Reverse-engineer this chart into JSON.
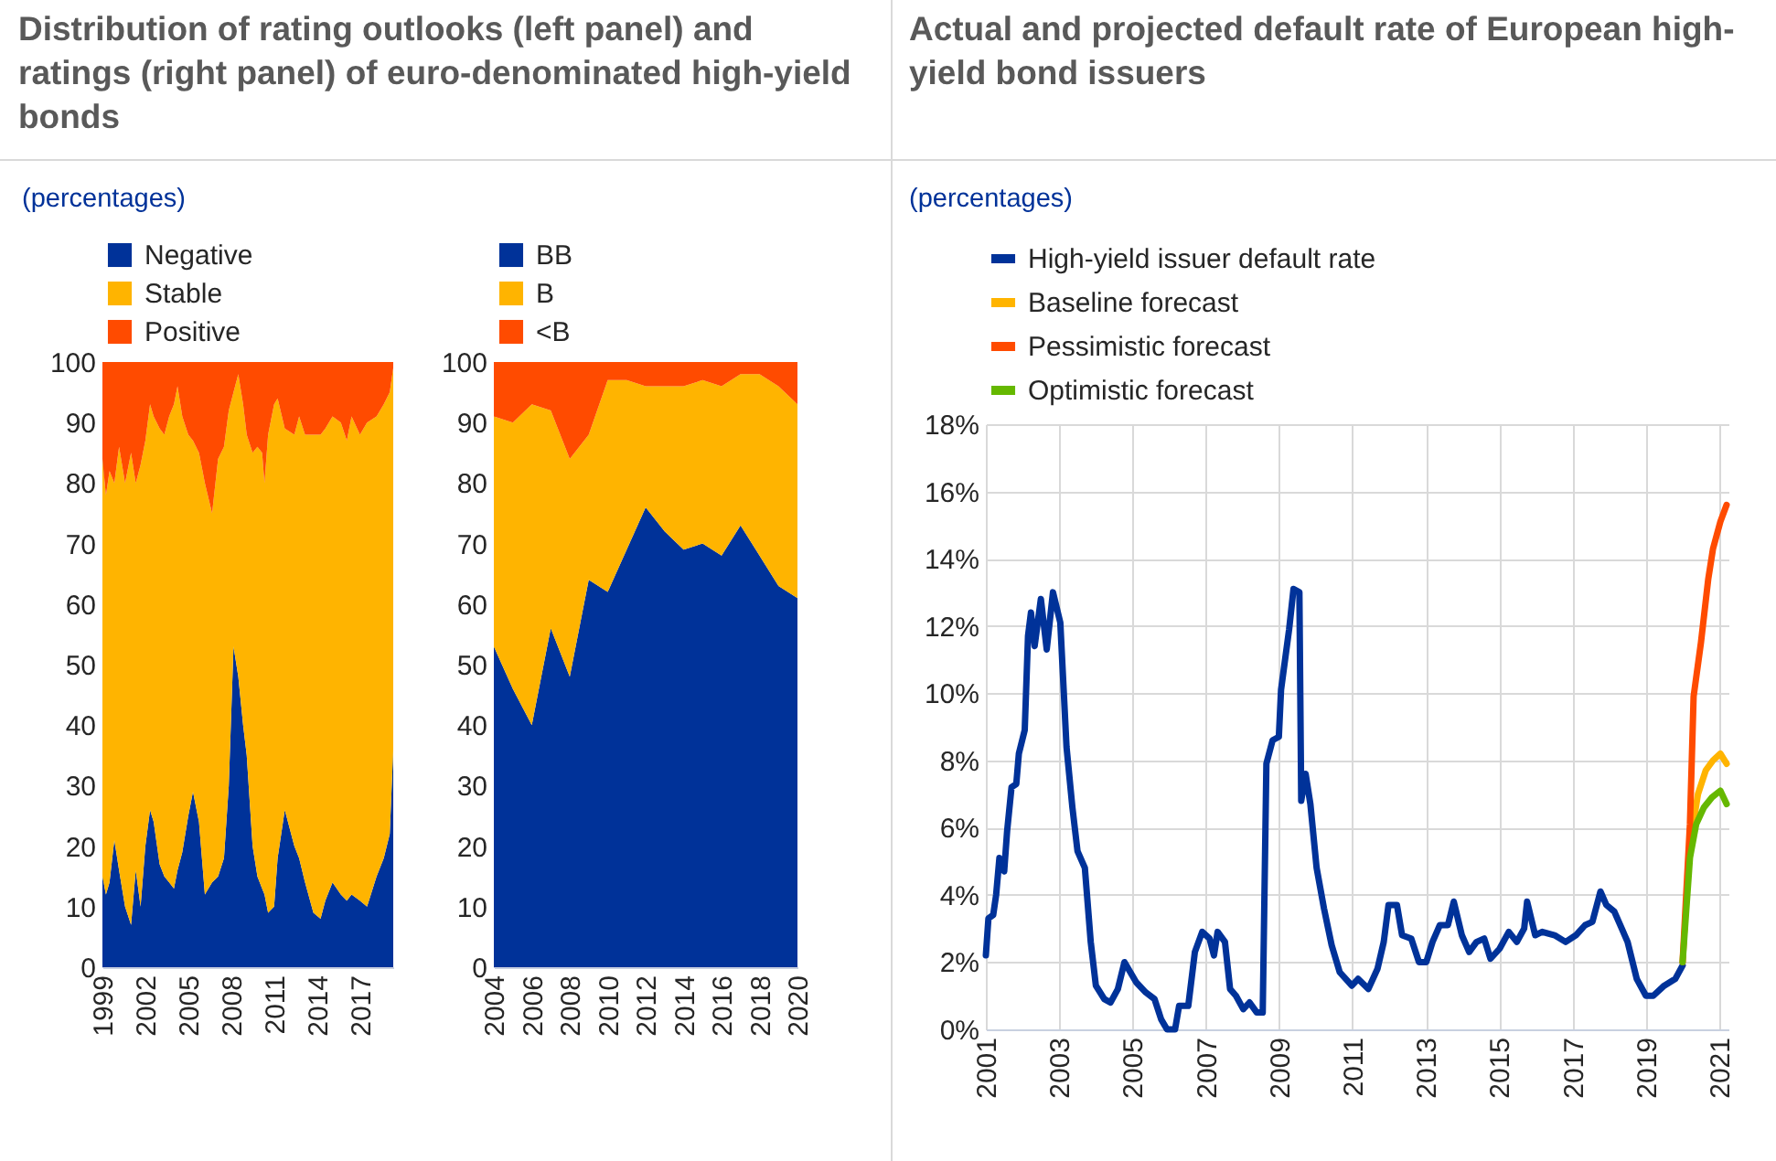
{
  "chart_data": [
    {
      "type": "area",
      "title": "Distribution of rating outlooks (left panel) and ratings (right panel) of euro-denominated high-yield bonds",
      "subtitle": "(percentages)",
      "stacked": true,
      "legend": "top left",
      "x": [
        "1999-01",
        "1999-04",
        "1999-07",
        "1999-11",
        "2000-03",
        "2000-08",
        "2001-01",
        "2001-05",
        "2001-09",
        "2002-01",
        "2002-05",
        "2002-08",
        "2003-01",
        "2003-05",
        "2003-09",
        "2004-01",
        "2004-04",
        "2004-08",
        "2005-01",
        "2005-05",
        "2005-10",
        "2006-03",
        "2006-09",
        "2007-02",
        "2007-07",
        "2007-11",
        "2008-03",
        "2008-07",
        "2008-11",
        "2009-02",
        "2009-07",
        "2009-11",
        "2010-03",
        "2010-05",
        "2010-08",
        "2011-01",
        "2011-04",
        "2011-10",
        "2012-06",
        "2012-10",
        "2013-03",
        "2013-10",
        "2014-04",
        "2014-08",
        "2015-02",
        "2015-09",
        "2016-02",
        "2016-06",
        "2017-01",
        "2017-07",
        "2018-03",
        "2018-09",
        "2019-02",
        "2019-05"
      ],
      "xlim": [
        "1999-01",
        "2019-05"
      ],
      "xticks": [
        "1999",
        "2002",
        "2005",
        "2008",
        "2011",
        "2014",
        "2017"
      ],
      "ylim": [
        0,
        100
      ],
      "yticks": [
        0,
        10,
        20,
        30,
        40,
        50,
        60,
        70,
        80,
        90,
        100
      ],
      "series": [
        {
          "name": "Negative",
          "color": "#003299",
          "values": [
            15,
            12,
            14,
            21,
            16,
            10,
            7,
            16,
            10,
            20,
            26,
            24,
            17,
            15,
            14,
            13,
            16,
            19,
            25,
            29,
            24,
            12,
            14,
            15,
            18,
            30,
            53,
            48,
            40,
            35,
            20,
            15,
            13,
            12,
            9,
            10,
            18,
            26,
            20,
            18,
            14,
            9,
            8,
            11,
            14,
            12,
            11,
            12,
            11,
            10,
            15,
            18,
            22,
            36
          ]
        },
        {
          "name": "Stable",
          "color": "#ffb400",
          "values": [
            69,
            66,
            68,
            59,
            70,
            70,
            78,
            64,
            73,
            67,
            67,
            67,
            72,
            73,
            77,
            80,
            80,
            72,
            63,
            58,
            61,
            68,
            61,
            69,
            68,
            62,
            42,
            50,
            53,
            53,
            65,
            71,
            72,
            68,
            79,
            83,
            76,
            63,
            68,
            73,
            74,
            79,
            80,
            78,
            77,
            78,
            76,
            79,
            77,
            80,
            76,
            75,
            73,
            63
          ]
        },
        {
          "name": "Positive",
          "color": "#ff4b00",
          "values": [
            16,
            22,
            18,
            20,
            14,
            20,
            15,
            20,
            17,
            13,
            7,
            9,
            11,
            12,
            9,
            7,
            4,
            9,
            12,
            13,
            15,
            20,
            25,
            16,
            14,
            8,
            5,
            2,
            7,
            12,
            15,
            14,
            15,
            20,
            12,
            7,
            6,
            11,
            12,
            9,
            12,
            12,
            12,
            11,
            9,
            10,
            13,
            9,
            12,
            10,
            9,
            7,
            5,
            1
          ]
        }
      ]
    },
    {
      "type": "area",
      "stacked": true,
      "legend": "top left",
      "x": [
        2004,
        2005,
        2006,
        2007,
        2008,
        2009,
        2010,
        2011,
        2012,
        2013,
        2014,
        2015,
        2016,
        2017,
        2018,
        2019,
        2020
      ],
      "xlim": [
        2004,
        2020
      ],
      "xticks": [
        2004,
        2006,
        2008,
        2010,
        2012,
        2014,
        2016,
        2018,
        2020
      ],
      "ylim": [
        0,
        100
      ],
      "yticks": [
        0,
        10,
        20,
        30,
        40,
        50,
        60,
        70,
        80,
        90,
        100
      ],
      "series": [
        {
          "name": "BB",
          "color": "#003299",
          "values": [
            53,
            46,
            40,
            56,
            48,
            64,
            62,
            69,
            76,
            72,
            69,
            70,
            68,
            73,
            68,
            63,
            61
          ]
        },
        {
          "name": "B",
          "color": "#ffb400",
          "values": [
            38,
            44,
            53,
            36,
            36,
            24,
            35,
            28,
            20,
            24,
            27,
            27,
            28,
            25,
            30,
            33,
            32
          ]
        },
        {
          "name": "<B",
          "color": "#ff4b00",
          "values": [
            9,
            10,
            7,
            8,
            16,
            12,
            3,
            3,
            4,
            4,
            4,
            3,
            4,
            2,
            2,
            4,
            7
          ]
        }
      ]
    },
    {
      "type": "line",
      "title": "Actual and projected default rate of European high-yield bond issuers",
      "subtitle": "(percentages)",
      "legend": "top left",
      "grid": true,
      "xlim": [
        2001,
        2021.25
      ],
      "xticks": [
        2001,
        2003,
        2005,
        2007,
        2009,
        2011,
        2013,
        2015,
        2017,
        2019,
        2021
      ],
      "ylim": [
        0,
        18
      ],
      "yticks": [
        {
          "value": 0,
          "label": "0%"
        },
        {
          "value": 2,
          "label": "2%"
        },
        {
          "value": 4,
          "label": "4%"
        },
        {
          "value": 6,
          "label": "6%"
        },
        {
          "value": 8,
          "label": "8%"
        },
        {
          "value": 10,
          "label": "10%"
        },
        {
          "value": 12,
          "label": "12%"
        },
        {
          "value": 14,
          "label": "14%"
        },
        {
          "value": 16,
          "label": "16%"
        },
        {
          "value": 18,
          "label": "18%"
        }
      ],
      "series": [
        {
          "name": "High-yield issuer default rate",
          "color": "#003299",
          "x": [
            2001.0,
            2001.07,
            2001.2,
            2001.28,
            2001.37,
            2001.5,
            2001.58,
            2001.7,
            2001.83,
            2001.9,
            2002.06,
            2002.15,
            2002.23,
            2002.33,
            2002.5,
            2002.66,
            2002.83,
            2003.03,
            2003.2,
            2003.36,
            2003.5,
            2003.7,
            2003.86,
            2004.0,
            2004.23,
            2004.4,
            2004.6,
            2004.78,
            2004.94,
            2005.1,
            2005.36,
            2005.6,
            2005.78,
            2005.94,
            2006.16,
            2006.27,
            2006.52,
            2006.7,
            2006.9,
            2007.1,
            2007.22,
            2007.32,
            2007.52,
            2007.66,
            2007.82,
            2008.02,
            2008.19,
            2008.39,
            2008.55,
            2008.65,
            2008.82,
            2008.99,
            2009.05,
            2009.27,
            2009.39,
            2009.55,
            2009.6,
            2009.72,
            2009.85,
            2010.02,
            2010.22,
            2010.43,
            2010.65,
            2010.98,
            2011.15,
            2011.43,
            2011.68,
            2011.85,
            2011.98,
            2012.21,
            2012.35,
            2012.6,
            2012.81,
            2013.01,
            2013.18,
            2013.38,
            2013.6,
            2013.76,
            2013.98,
            2014.18,
            2014.38,
            2014.59,
            2014.76,
            2015.01,
            2015.26,
            2015.48,
            2015.68,
            2015.76,
            2015.98,
            2016.17,
            2016.51,
            2016.81,
            2017.09,
            2017.34,
            2017.54,
            2017.76,
            2017.92,
            2018.14,
            2018.34,
            2018.5,
            2018.75,
            2019.0,
            2019.2,
            2019.5,
            2019.8,
            2020.0
          ],
          "values": [
            2.2,
            3.3,
            3.4,
            4.0,
            5.1,
            4.7,
            5.9,
            7.2,
            7.3,
            8.2,
            8.9,
            11.7,
            12.4,
            11.4,
            12.8,
            11.3,
            13.0,
            12.1,
            8.4,
            6.6,
            5.3,
            4.8,
            2.6,
            1.3,
            0.9,
            0.8,
            1.2,
            2.0,
            1.7,
            1.4,
            1.1,
            0.9,
            0.3,
            0.0,
            0.0,
            0.7,
            0.7,
            2.3,
            2.9,
            2.7,
            2.2,
            2.9,
            2.6,
            1.2,
            1.0,
            0.6,
            0.8,
            0.5,
            0.5,
            7.9,
            8.6,
            8.7,
            10.1,
            11.9,
            13.1,
            13.0,
            6.8,
            7.6,
            6.7,
            4.8,
            3.6,
            2.5,
            1.7,
            1.3,
            1.5,
            1.2,
            1.8,
            2.6,
            3.7,
            3.7,
            2.8,
            2.7,
            2.0,
            2.0,
            2.6,
            3.1,
            3.1,
            3.8,
            2.8,
            2.3,
            2.6,
            2.7,
            2.1,
            2.4,
            2.9,
            2.6,
            3.0,
            3.8,
            2.8,
            2.9,
            2.8,
            2.6,
            2.8,
            3.1,
            3.2,
            4.1,
            3.7,
            3.5,
            3.0,
            2.6,
            1.5,
            1.0,
            1.0,
            1.3,
            1.5,
            1.9
          ]
        },
        {
          "name": "Baseline forecast",
          "color": "#ffb400",
          "x": [
            2020.2,
            2020.42,
            2020.63,
            2020.83,
            2021.03,
            2021.2
          ],
          "values": [
            5.5,
            7.0,
            7.7,
            8.0,
            8.2,
            7.9
          ]
        },
        {
          "name": "Pessimistic forecast",
          "color": "#ff4b00",
          "x": [
            2020.0,
            2020.2,
            2020.3,
            2020.5,
            2020.7,
            2020.83,
            2021.03,
            2021.2
          ],
          "values": [
            2.0,
            6.1,
            9.9,
            11.5,
            13.4,
            14.3,
            15.1,
            15.6
          ]
        },
        {
          "name": "Optimistic forecast",
          "color": "#65b800",
          "x": [
            2020.0,
            2020.2,
            2020.37,
            2020.58,
            2020.8,
            2021.03,
            2021.2
          ],
          "values": [
            2.0,
            5.1,
            6.1,
            6.6,
            6.9,
            7.1,
            6.7
          ]
        }
      ]
    }
  ]
}
